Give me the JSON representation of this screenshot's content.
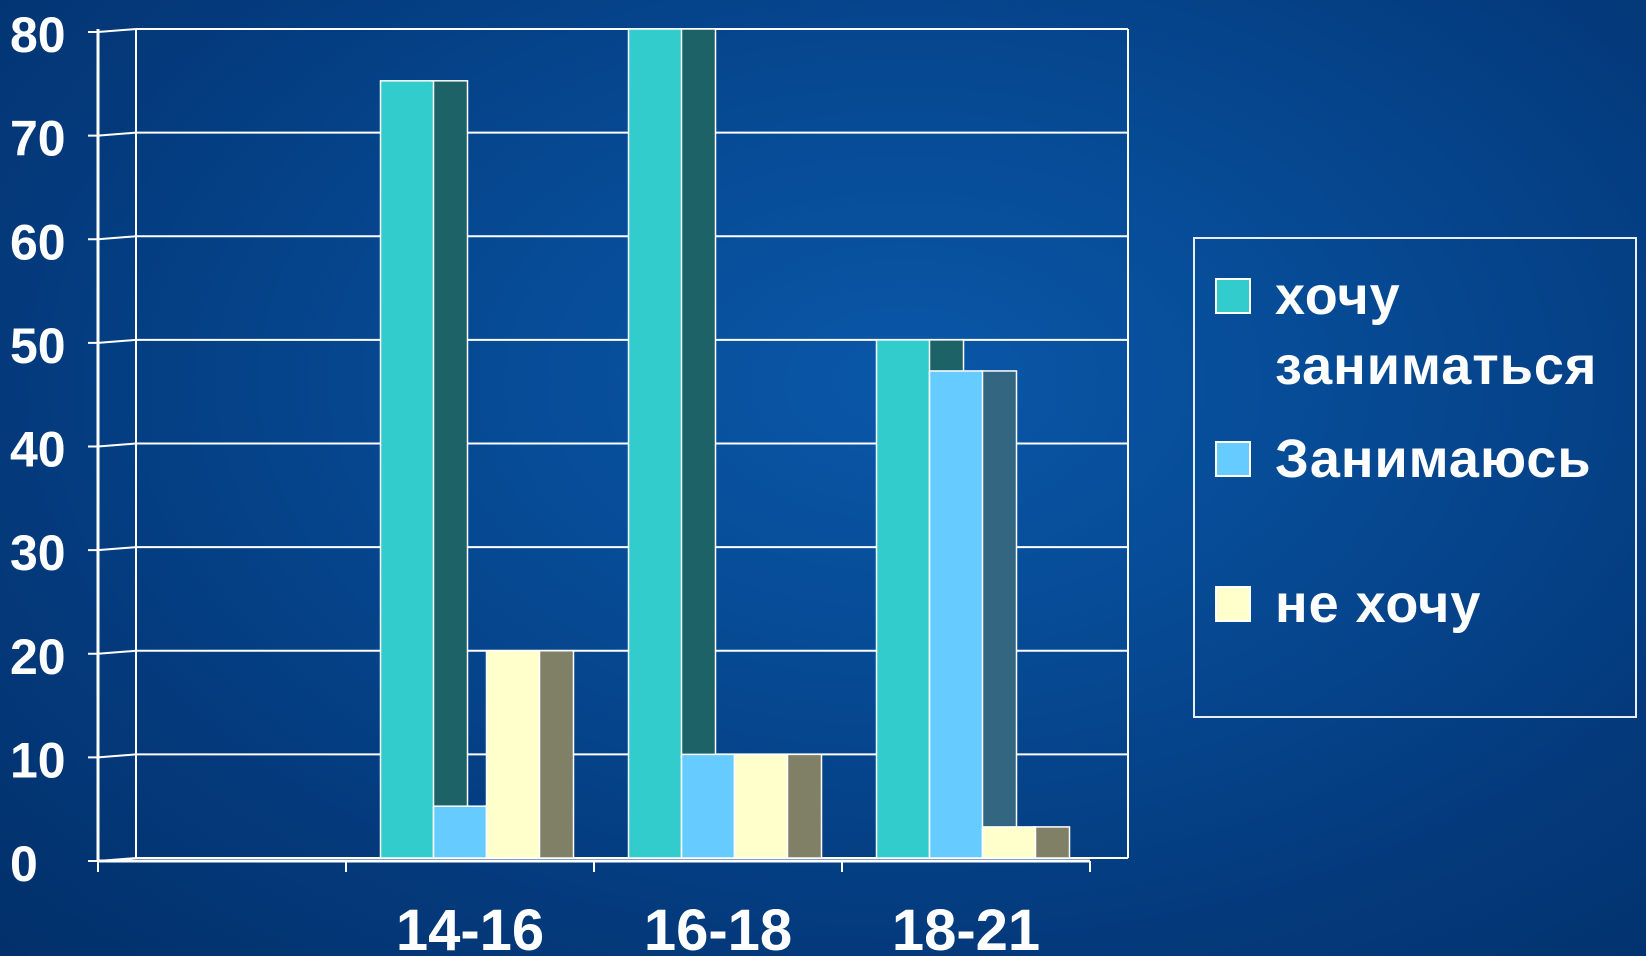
{
  "chart_data": {
    "type": "bar",
    "categories": [
      "",
      "14-16",
      "16-18",
      "18-21"
    ],
    "y_ticks": [
      "0",
      "10",
      "20",
      "30",
      "40",
      "50",
      "60",
      "70",
      "80"
    ],
    "ylim": [
      0,
      80
    ],
    "grid": true,
    "legend_position": "right",
    "series": [
      {
        "name": "хочу заниматься",
        "values": [
          null,
          75,
          80,
          50
        ],
        "color": "#33cccc",
        "shade": "#1c6266"
      },
      {
        "name": "Занимаюсь",
        "values": [
          null,
          5,
          10,
          47
        ],
        "color": "#66ccff",
        "shade": "#336680"
      },
      {
        "name": "не хочу",
        "values": [
          null,
          20,
          10,
          3
        ],
        "color": "#ffffcc",
        "shade": "#808066"
      }
    ]
  }
}
